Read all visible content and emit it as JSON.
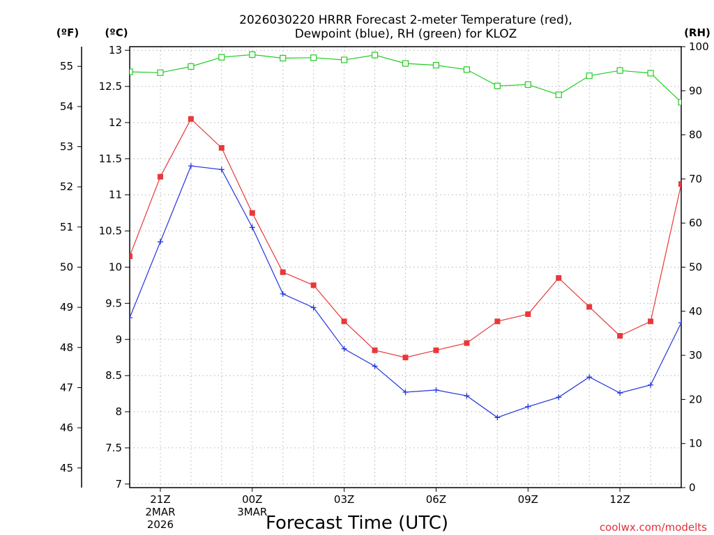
{
  "chart_data": {
    "type": "line",
    "title_line1": "2026030220 HRRR Forecast 2-meter Temperature (red),",
    "title_line2": "Dewpoint (blue), RH (green) for KLOZ",
    "xlabel": "Forecast Time (UTC)",
    "credit": "coolwx.com/modelts",
    "axis_units": {
      "fahrenheit": "(ºF)",
      "celsius": "(ºC)",
      "rh": "(RH)"
    },
    "x_hours": [
      20,
      21,
      22,
      23,
      24,
      25,
      26,
      27,
      28,
      29,
      30,
      31,
      32,
      33,
      34,
      35,
      36,
      37,
      38
    ],
    "x_range": [
      20,
      38
    ],
    "x_ticks": [
      {
        "hour": 21,
        "lines": [
          "21Z",
          "2MAR",
          "2026"
        ]
      },
      {
        "hour": 24,
        "lines": [
          "00Z",
          "3MAR"
        ]
      },
      {
        "hour": 27,
        "lines": [
          "03Z"
        ]
      },
      {
        "hour": 30,
        "lines": [
          "06Z"
        ]
      },
      {
        "hour": 33,
        "lines": [
          "09Z"
        ]
      },
      {
        "hour": 36,
        "lines": [
          "12Z"
        ]
      }
    ],
    "celsius_range": [
      6.95,
      13.05
    ],
    "celsius_ticks": [
      "7",
      "7.5",
      "8",
      "8.5",
      "9",
      "9.5",
      "10",
      "10.5",
      "11",
      "11.5",
      "12",
      "12.5",
      "13"
    ],
    "fahrenheit_ticks": [
      "45",
      "46",
      "47",
      "48",
      "49",
      "50",
      "51",
      "52",
      "53",
      "54",
      "55"
    ],
    "rh_range": [
      0,
      100
    ],
    "rh_ticks": [
      "0",
      "10",
      "20",
      "30",
      "40",
      "50",
      "60",
      "70",
      "80",
      "90",
      "100"
    ],
    "series": [
      {
        "name": "Temperature",
        "color": "#e8383a",
        "axis": "celsius",
        "marker": "filled-square",
        "values": [
          10.15,
          11.25,
          12.05,
          11.65,
          10.75,
          9.93,
          9.75,
          9.25,
          8.85,
          8.75,
          8.85,
          8.95,
          9.25,
          9.35,
          9.85,
          9.45,
          9.05,
          9.25,
          11.15
        ]
      },
      {
        "name": "Dewpoint",
        "color": "#2233dd",
        "axis": "celsius",
        "marker": "plus",
        "values": [
          9.3,
          10.35,
          11.4,
          11.35,
          10.55,
          9.63,
          9.44,
          8.87,
          8.63,
          8.27,
          8.3,
          8.22,
          7.92,
          8.07,
          8.2,
          8.48,
          8.26,
          8.37,
          9.23
        ]
      },
      {
        "name": "RH",
        "color": "#22cc22",
        "axis": "rh",
        "marker": "open-square",
        "values": [
          94.3,
          94.1,
          95.5,
          97.6,
          98.2,
          97.4,
          97.5,
          97.0,
          98.1,
          96.2,
          95.8,
          94.8,
          91.1,
          91.4,
          89.1,
          93.4,
          94.6,
          94.0,
          87.4
        ]
      }
    ]
  }
}
